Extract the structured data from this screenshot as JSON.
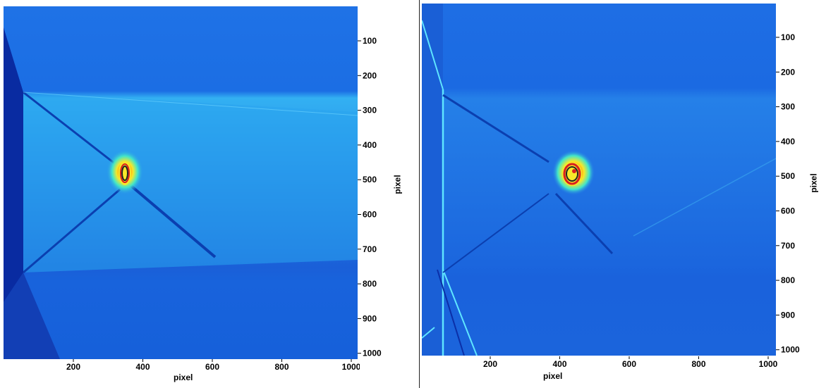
{
  "panels": [
    {
      "x_axis": {
        "label": "pixel",
        "ticks": [
          "200",
          "400",
          "600",
          "800",
          "1000"
        ]
      },
      "y_axis": {
        "label": "pixel",
        "ticks": [
          "100",
          "200",
          "300",
          "400",
          "500",
          "600",
          "700",
          "800",
          "900",
          "1000"
        ]
      },
      "corner_tiny_text": "",
      "colormap": "jet"
    },
    {
      "x_axis": {
        "label": "pixel",
        "ticks": [
          "200",
          "400",
          "600",
          "800",
          "1000"
        ]
      },
      "y_axis": {
        "label": "pixel",
        "ticks": [
          "100",
          "200",
          "300",
          "400",
          "500",
          "600",
          "700",
          "800",
          "900",
          "1000"
        ]
      },
      "corner_tiny_text": "",
      "colormap": "jet"
    }
  ],
  "colors": {
    "background_blue": "#1a66e0",
    "bright_band": "#2fb4f0",
    "dark_blue": "#0b2fa8",
    "hotspot_yellow": "#f7e82a",
    "hotspot_red": "#d91f1f",
    "cyan": "#5fe6ff"
  }
}
